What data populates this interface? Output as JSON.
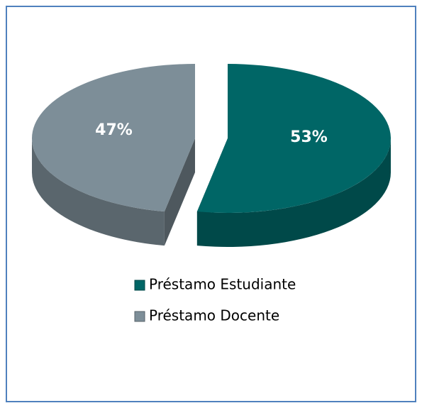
{
  "chart_data": {
    "type": "pie",
    "categories": [
      "Préstamo Estudiante",
      "Préstamo Docente"
    ],
    "values": [
      53,
      47
    ],
    "value_labels": [
      "53%",
      "47%"
    ],
    "colors": [
      "#006666",
      "#7d8e98"
    ]
  }
}
